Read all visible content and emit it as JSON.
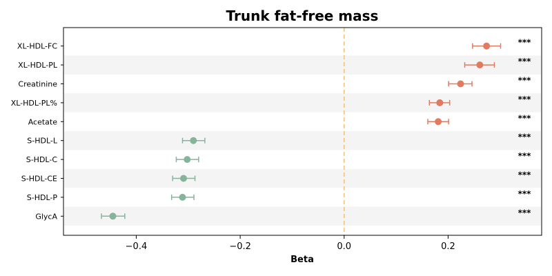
{
  "chart_data": {
    "type": "forest",
    "title": "Trunk fat-free mass",
    "xlabel": "Beta",
    "xlim": [
      -0.54,
      0.38
    ],
    "xticks": [
      -0.4,
      -0.2,
      0.0,
      0.2
    ],
    "xtick_labels": [
      "−0.4",
      "−0.2",
      "0.0",
      "0.2"
    ],
    "reference_line": 0.0,
    "significance_label": "***",
    "colors": {
      "positive": "#e07b5f",
      "negative": "#86b49b",
      "reference_line": "#f2c27b",
      "stripe": "#f4f4f4",
      "frame": "#000000"
    },
    "points": [
      {
        "label": "XL-HDL-FC",
        "beta": 0.274,
        "ci_low": 0.247,
        "ci_high": 0.301,
        "sig": "***"
      },
      {
        "label": "XL-HDL-PL",
        "beta": 0.261,
        "ci_low": 0.232,
        "ci_high": 0.289,
        "sig": "***"
      },
      {
        "label": "Creatinine",
        "beta": 0.224,
        "ci_low": 0.201,
        "ci_high": 0.246,
        "sig": "***"
      },
      {
        "label": "XL-HDL-PL%",
        "beta": 0.184,
        "ci_low": 0.164,
        "ci_high": 0.203,
        "sig": "***"
      },
      {
        "label": "Acetate",
        "beta": 0.181,
        "ci_low": 0.161,
        "ci_high": 0.201,
        "sig": "***"
      },
      {
        "label": "S-HDL-L",
        "beta": -0.29,
        "ci_low": -0.311,
        "ci_high": -0.268,
        "sig": "***"
      },
      {
        "label": "S-HDL-C",
        "beta": -0.302,
        "ci_low": -0.323,
        "ci_high": -0.28,
        "sig": "***"
      },
      {
        "label": "S-HDL-CE",
        "beta": -0.309,
        "ci_low": -0.33,
        "ci_high": -0.287,
        "sig": "***"
      },
      {
        "label": "S-HDL-P",
        "beta": -0.311,
        "ci_low": -0.332,
        "ci_high": -0.289,
        "sig": "***"
      },
      {
        "label": "GlycA",
        "beta": -0.445,
        "ci_low": -0.467,
        "ci_high": -0.422,
        "sig": "***"
      }
    ]
  }
}
